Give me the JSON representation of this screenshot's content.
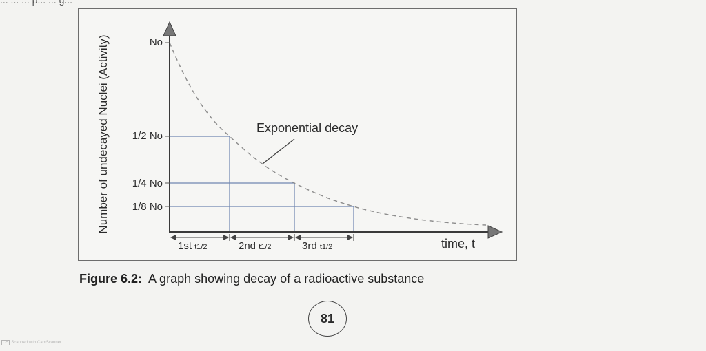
{
  "top_text": "... ... ... p... ... g...",
  "axis": {
    "y_label": "Number of undecayed Nuclei (Activity)",
    "x_label": "time, t",
    "y_ticks": [
      "No",
      "1/2 No",
      "1/4 No",
      "1/8 No"
    ],
    "x_intervals": [
      {
        "main": "1st",
        "sub": "t1/2"
      },
      {
        "main": "2nd",
        "sub": "t1/2"
      },
      {
        "main": "3rd",
        "sub": "t1/2"
      }
    ]
  },
  "curve_label": "Exponential decay",
  "caption": {
    "number": "Figure 6.2:",
    "text": "A graph showing decay of a radioactive substance"
  },
  "page_number": "81",
  "scanner_mark": {
    "logo": "CS",
    "text": "Scanned with CamScanner"
  },
  "colors": {
    "guide_lines": "#6f86b0",
    "curve": "#8c8c8c",
    "axis": "#3a3a3a"
  }
}
